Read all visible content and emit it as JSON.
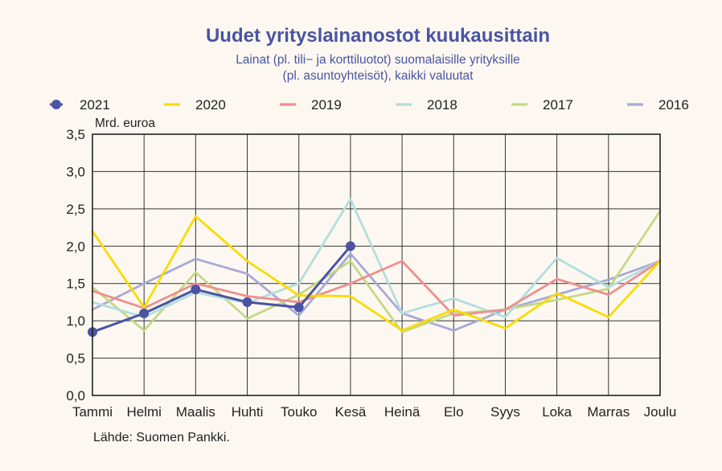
{
  "chart_data": {
    "type": "line",
    "title": "Uudet yrityslainanostot kuukausittain",
    "subtitle_lines": [
      "Lainat (pl. tili− ja korttiluotot) suomalaisille yrityksille",
      "(pl. asuntoyhteisöt), kaikki valuutat"
    ],
    "ylabel": "Mrd. euroa",
    "source": "Lähde: Suomen Pankki.",
    "ylim": [
      0,
      3.5
    ],
    "yticks": [
      0,
      0.5,
      1.0,
      1.5,
      2.0,
      2.5,
      3.0,
      3.5
    ],
    "ytick_labels": [
      "0,0",
      "0,5",
      "1,0",
      "1,5",
      "2,0",
      "2,5",
      "3,0",
      "3,5"
    ],
    "categories": [
      "Tammi",
      "Helmi",
      "Maalis",
      "Huhti",
      "Touko",
      "Kesä",
      "Heinä",
      "Elo",
      "Syys",
      "Loka",
      "Marras",
      "Joulu"
    ],
    "grid": true,
    "legend_position": "top",
    "series": [
      {
        "name": "2021",
        "color": "#4a54a2",
        "markers": true,
        "values": [
          0.85,
          1.1,
          1.42,
          1.25,
          1.18,
          2.0,
          null,
          null,
          null,
          null,
          null,
          null
        ]
      },
      {
        "name": "2020",
        "color": "#fadb00",
        "markers": false,
        "values": [
          2.2,
          1.18,
          2.4,
          1.8,
          1.34,
          1.33,
          0.87,
          1.15,
          0.9,
          1.37,
          1.05,
          1.8
        ]
      },
      {
        "name": "2019",
        "color": "#ef8f8f",
        "markers": false,
        "values": [
          1.4,
          1.17,
          1.5,
          1.33,
          1.25,
          1.5,
          1.8,
          1.07,
          1.15,
          1.56,
          1.35,
          1.8
        ]
      },
      {
        "name": "2018",
        "color": "#b3dedd",
        "markers": false,
        "values": [
          1.25,
          1.05,
          1.38,
          1.24,
          1.5,
          2.63,
          1.1,
          1.3,
          1.05,
          1.84,
          1.45,
          1.8
        ]
      },
      {
        "name": "2017",
        "color": "#c5d885",
        "markers": false,
        "values": [
          1.45,
          0.87,
          1.65,
          1.03,
          1.35,
          1.8,
          0.85,
          1.1,
          1.15,
          1.28,
          1.43,
          2.47
        ]
      },
      {
        "name": "2016",
        "color": "#a9a9d8",
        "markers": false,
        "values": [
          1.15,
          1.5,
          1.83,
          1.63,
          1.07,
          1.9,
          1.1,
          0.87,
          1.15,
          1.35,
          1.55,
          1.8
        ]
      }
    ]
  }
}
